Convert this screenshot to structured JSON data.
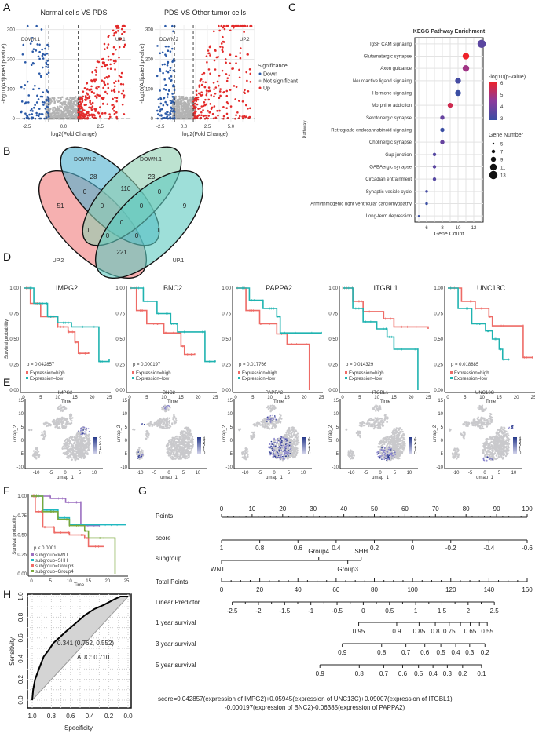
{
  "panels": {
    "A": "A",
    "B": "B",
    "C": "C",
    "D": "D",
    "E": "E",
    "F": "F",
    "G": "G",
    "H": "H"
  },
  "chart_data": [
    {
      "id": "volcano-1",
      "type": "scatter",
      "title": "Normal cells  VS  PDS",
      "xlabel": "log2(Fold Change)",
      "ylabel": "-log10(Adjusted p-value)",
      "xlim": [
        -3.2,
        4.6
      ],
      "ylim": [
        -10,
        315
      ],
      "xticks": [
        "-2.5",
        "0.0",
        "2.5"
      ],
      "yticks": [
        "0",
        "100",
        "200",
        "300"
      ],
      "thresholds": {
        "log2fc": [
          -1,
          1
        ],
        "padj": 0
      },
      "annotations": [
        "DOWN.1",
        "UP.1"
      ],
      "colors": {
        "Down": "#2b5aa8",
        "Not significant": "#b3b3b3",
        "Up": "#e32b2b"
      }
    },
    {
      "id": "volcano-2",
      "type": "scatter",
      "title": "PDS  VS  Other tumor cells",
      "xlabel": "log2(Fold Change)",
      "ylabel": "-log10(Adjusted p-value)",
      "xlim": [
        -3.1,
        7.6
      ],
      "ylim": [
        -10,
        315
      ],
      "xticks": [
        "-2.5",
        "0.0",
        "2.5",
        "5.0"
      ],
      "yticks": [
        "0",
        "100",
        "200",
        "300"
      ],
      "thresholds": {
        "log2fc": [
          -1,
          1
        ],
        "padj": 0
      },
      "annotations": [
        "DOWN.2",
        "UP.2"
      ],
      "legend": {
        "title": "Significance",
        "items": [
          "Down",
          "Not significant",
          "Up"
        ]
      }
    },
    {
      "id": "venn",
      "type": "venn",
      "sets": [
        "UP.2",
        "DOWN.2",
        "DOWN.1",
        "UP.1"
      ],
      "colors": [
        "#f07b7b",
        "#4fb1cf",
        "#8fcfb0",
        "#5ec9c0"
      ],
      "regions": [
        "51",
        "28",
        "110",
        "23",
        "9",
        "0",
        "0",
        "0",
        "0",
        "0",
        "0",
        "0",
        "0",
        "0",
        "221"
      ]
    },
    {
      "id": "kegg",
      "type": "scatter",
      "title": "KEGG Pathway Enrichment",
      "xlabel": "Gene Count",
      "ylabel": "Pathway",
      "xlim": [
        4.5,
        13.2
      ],
      "xticks": [
        "6",
        "8",
        "10",
        "12"
      ],
      "pathways": [
        "IgSF CAM signaling",
        "Glutamatergic synapse",
        "Axon guidance",
        "Neuroactive ligand signaling",
        "Hormone signaling",
        "Morphine addiction",
        "Serotonergic synapse",
        "Retrograde endocannabinoid signaling",
        "Cholinergic synapse",
        "Gap junction",
        "GABAergic synapse",
        "Circadian entrainment",
        "Synaptic vesicle cycle",
        "Arrhythmogenic right ventricular cardiomyopathy",
        "Long-term depression"
      ],
      "gene_count": [
        13,
        11,
        11,
        10,
        10,
        9,
        8,
        8,
        8,
        7,
        7,
        7,
        6,
        6,
        5
      ],
      "neg_log10_p": [
        3.6,
        6.0,
        4.8,
        3.2,
        2.9,
        5.5,
        3.8,
        3.0,
        3.8,
        3.5,
        3.6,
        3.5,
        3.2,
        2.9,
        3.0
      ],
      "color_legend": {
        "title": "-log10(p-value)",
        "ticks": [
          "6",
          "5",
          "4",
          "3"
        ],
        "low": "#3a4ea3",
        "mid": "#8c3a9c",
        "high": "#ee2229"
      },
      "size_legend": {
        "title": "Gene Number",
        "ticks": [
          "5",
          "7",
          "9",
          "11",
          "13"
        ]
      }
    },
    {
      "id": "km-genes",
      "type": "line",
      "ylabel": "Survival probability",
      "xlabel": "Time",
      "xlim": [
        0,
        25
      ],
      "ylim": [
        0,
        1
      ],
      "xticks": [
        "0",
        "5",
        "10",
        "15",
        "20",
        "25"
      ],
      "yticks": [
        "0.00",
        "0.25",
        "0.50",
        "0.75",
        "1.00"
      ],
      "legend": [
        "Expression=high",
        "Expression=low"
      ],
      "colors": {
        "high": "#ee6b66",
        "low": "#1fb3b0"
      },
      "panels": [
        {
          "gene": "IMPG2",
          "p": "p = 0.042857",
          "high": [
            [
              0,
              1
            ],
            [
              2,
              0.85
            ],
            [
              5,
              0.72
            ],
            [
              10,
              0.62
            ],
            [
              13,
              0.57
            ],
            [
              15,
              0.47
            ],
            [
              16,
              0.36
            ],
            [
              19,
              0.37
            ]
          ],
          "low": [
            [
              0,
              1
            ],
            [
              3,
              0.85
            ],
            [
              7,
              0.72
            ],
            [
              10,
              0.66
            ],
            [
              14,
              0.62
            ],
            [
              22,
              0.56
            ],
            [
              22,
              0.28
            ],
            [
              25,
              0.3
            ]
          ]
        },
        {
          "gene": "BNC2",
          "p": "p = 0.000197",
          "high": [
            [
              0,
              1
            ],
            [
              2,
              0.78
            ],
            [
              5,
              0.65
            ],
            [
              10,
              0.56
            ],
            [
              15,
              0.55
            ],
            [
              15,
              0.43
            ],
            [
              16,
              0.35
            ],
            [
              19,
              0.36
            ]
          ],
          "low": [
            [
              0,
              1
            ],
            [
              4,
              0.87
            ],
            [
              8,
              0.75
            ],
            [
              12,
              0.65
            ],
            [
              14,
              0.57
            ],
            [
              22,
              0.57
            ],
            [
              22,
              0.28
            ],
            [
              25,
              0.29
            ]
          ]
        },
        {
          "gene": "PAPPA2",
          "p": "p = 0.017766",
          "high": [
            [
              0,
              1
            ],
            [
              3,
              0.78
            ],
            [
              7,
              0.65
            ],
            [
              12,
              0.55
            ],
            [
              15,
              0.45
            ],
            [
              21.5,
              0.4
            ],
            [
              21.5,
              0
            ]
          ],
          "low": [
            [
              0,
              1
            ],
            [
              4,
              0.88
            ],
            [
              8,
              0.8
            ],
            [
              12,
              0.72
            ],
            [
              13,
              0.56
            ],
            [
              25,
              0.57
            ]
          ]
        },
        {
          "gene": "ITGBL1",
          "p": "p = 0.014329",
          "high": [
            [
              0,
              1
            ],
            [
              3,
              0.87
            ],
            [
              6,
              0.77
            ],
            [
              12,
              0.7
            ],
            [
              15,
              0.62
            ],
            [
              25,
              0.6
            ]
          ],
          "low": [
            [
              0,
              1
            ],
            [
              3,
              0.8
            ],
            [
              6,
              0.67
            ],
            [
              10,
              0.6
            ],
            [
              13,
              0.52
            ],
            [
              15,
              0.4
            ],
            [
              22,
              0.4
            ],
            [
              22,
              0
            ]
          ]
        },
        {
          "gene": "UNC13C",
          "p": "p = 0.018885",
          "high": [
            [
              0,
              1
            ],
            [
              4,
              0.87
            ],
            [
              8,
              0.8
            ],
            [
              12,
              0.72
            ],
            [
              13,
              0.63
            ],
            [
              22,
              0.63
            ],
            [
              22,
              0.32
            ],
            [
              25,
              0.32
            ]
          ],
          "low": [
            [
              0,
              1
            ],
            [
              3,
              0.8
            ],
            [
              7,
              0.65
            ],
            [
              11,
              0.58
            ],
            [
              13,
              0.5
            ],
            [
              15,
              0.4
            ],
            [
              16,
              0.3
            ],
            [
              18,
              0.3
            ]
          ]
        }
      ]
    },
    {
      "id": "umap",
      "type": "scatter",
      "xlabel": "umap_1",
      "ylabel": "umap_2",
      "xticks": [
        "-10",
        "-5",
        "0",
        "5",
        "10"
      ],
      "yticks": [
        "-10",
        "-5",
        "0",
        "5",
        "10",
        "15"
      ],
      "panels": [
        {
          "gene": "IMPG2",
          "legend": [
            "3",
            "2",
            "1",
            "0"
          ]
        },
        {
          "gene": "BNC2",
          "legend": [
            "4",
            "3",
            "2",
            "1",
            "0"
          ]
        },
        {
          "gene": "PAPPA2",
          "legend": [
            "4",
            "3",
            "2",
            "1",
            "0"
          ]
        },
        {
          "gene": "ITGBL1",
          "legend": [
            "4",
            "3",
            "2",
            "1",
            "0"
          ]
        },
        {
          "gene": "UNC13C",
          "legend": [
            "4",
            "3",
            "2",
            "1",
            "0"
          ]
        }
      ]
    },
    {
      "id": "km-subgroup",
      "type": "line",
      "ylabel": "Survival probability",
      "xlabel": "Time",
      "p": "p < 0.0001",
      "xlim": [
        0,
        25
      ],
      "ylim": [
        0,
        1
      ],
      "xticks": [
        "0",
        "5",
        "10",
        "15",
        "20",
        "25"
      ],
      "yticks": [
        "0.00",
        "0.25",
        "0.50",
        "0.75",
        "1.00"
      ],
      "series": [
        {
          "name": "subgroup=WNT",
          "color": "#9b6fc0",
          "points": [
            [
              0,
              1
            ],
            [
              2,
              1
            ],
            [
              5,
              0.97
            ],
            [
              9,
              0.92
            ],
            [
              13,
              0.92
            ],
            [
              13,
              0.62
            ],
            [
              18,
              0.62
            ]
          ]
        },
        {
          "name": "subgroup=SHH",
          "color": "#1fb8c0",
          "points": [
            [
              0,
              1
            ],
            [
              3,
              0.82
            ],
            [
              7,
              0.72
            ],
            [
              10,
              0.63
            ],
            [
              25,
              0.63
            ]
          ]
        },
        {
          "name": "subgroup=Group3",
          "color": "#ee6b66",
          "points": [
            [
              0,
              1
            ],
            [
              1,
              0.8
            ],
            [
              3,
              0.6
            ],
            [
              6,
              0.53
            ],
            [
              10,
              0.5
            ],
            [
              14,
              0.46
            ],
            [
              15,
              0.35
            ],
            [
              19,
              0.35
            ]
          ]
        },
        {
          "name": "subgroup=Group4",
          "color": "#7aa83a",
          "points": [
            [
              0,
              1
            ],
            [
              3,
              0.8
            ],
            [
              7,
              0.7
            ],
            [
              10,
              0.62
            ],
            [
              14,
              0.55
            ],
            [
              15,
              0.46
            ],
            [
              22,
              0.46
            ],
            [
              22,
              0
            ]
          ]
        }
      ]
    },
    {
      "id": "nomogram",
      "type": "nomogram",
      "rows": {
        "points": {
          "label": "Points",
          "ticks": [
            "0",
            "10",
            "20",
            "30",
            "40",
            "50",
            "60",
            "70",
            "80",
            "90",
            "100"
          ]
        },
        "score": {
          "label": "score",
          "ticks": [
            [
              "1",
              0
            ],
            [
              "0.8",
              12.5
            ],
            [
              "0.6",
              25
            ],
            [
              "0.4",
              37.5
            ],
            [
              "0.2",
              50
            ],
            [
              "0",
              62.5
            ],
            [
              "-0.2",
              75
            ],
            [
              "-0.4",
              87.5
            ],
            [
              "-0.6",
              100
            ]
          ]
        },
        "subgroup": {
          "label": "subgroup",
          "levels": [
            [
              "WNT",
              0
            ],
            [
              "Group4",
              31.8
            ],
            [
              "Group3",
              41.3
            ],
            [
              "SHH",
              45.7
            ]
          ]
        },
        "total": {
          "label": "Total Points",
          "ticks": [
            "0",
            "20",
            "40",
            "60",
            "80",
            "100",
            "120",
            "140",
            "160"
          ]
        },
        "lp": {
          "label": "Linear Predictor",
          "ticks": [
            "-2.5",
            "-2",
            "-1.5",
            "-1",
            "-0.5",
            "0",
            "0.5",
            "1",
            "1.5",
            "2",
            "2.5"
          ],
          "total_range": [
            5.6,
            142.8
          ]
        },
        "y1": {
          "label": "1 year survival",
          "ticks": [
            [
              "0.95",
              71.8
            ],
            [
              "0.9",
              91.7
            ],
            [
              "0.85",
              103.4
            ],
            [
              "0.8",
              111.9
            ],
            [
              "0.75",
              119.2
            ],
            [
              "",
              125.1
            ],
            [
              "0.65",
              130.2
            ],
            [
              "",
              135.0
            ],
            [
              "0.55",
              139.1
            ]
          ]
        },
        "y3": {
          "label": "3 year survival",
          "ticks": [
            [
              "0.9",
              63.2
            ],
            [
              "0.8",
              83.8
            ],
            [
              "0.7",
              96.5
            ],
            [
              "0.6",
              106.4
            ],
            [
              "0.5",
              114.8
            ],
            [
              "0.4",
              122.6
            ],
            [
              "0.3",
              129.9
            ],
            [
              "0.2",
              137.9
            ]
          ]
        },
        "y5": {
          "label": "5 year survival",
          "ticks": [
            [
              "0.9",
              51.5
            ],
            [
              "0.8",
              72.1
            ],
            [
              "0.7",
              84.9
            ],
            [
              "0.6",
              94.8
            ],
            [
              "0.5",
              103.1
            ],
            [
              "0.4",
              110.7
            ],
            [
              "0.3",
              118.2
            ],
            [
              "0.2",
              126.2
            ],
            [
              "0.1",
              136.1
            ]
          ]
        }
      },
      "formula_line1": "score=0.042857(expression of IMPG2)+0.05945(expression of UNC13C)+0.09007(expression of ITGBL1)",
      "formula_line2": "-0.000197(expression of BNC2)-0.06385(expression of PAPPA2)"
    },
    {
      "id": "roc",
      "type": "line",
      "xlabel": "Specificity",
      "ylabel": "Sensitivity",
      "xticks": [
        "1.0",
        "0.8",
        "0.6",
        "0.4",
        "0.2",
        "0.0"
      ],
      "yticks": [
        "0.0",
        "0.2",
        "0.4",
        "0.6",
        "0.8",
        "1.0"
      ],
      "xlim": [
        1,
        0
      ],
      "ylim": [
        0,
        1
      ],
      "points": [
        [
          1,
          0
        ],
        [
          0.99,
          0.1
        ],
        [
          0.97,
          0.2
        ],
        [
          0.93,
          0.3
        ],
        [
          0.88,
          0.42
        ],
        [
          0.83,
          0.48
        ],
        [
          0.78,
          0.55
        ],
        [
          0.72,
          0.6
        ],
        [
          0.65,
          0.66
        ],
        [
          0.55,
          0.74
        ],
        [
          0.45,
          0.82
        ],
        [
          0.35,
          0.88
        ],
        [
          0.25,
          0.92
        ],
        [
          0.15,
          0.97
        ],
        [
          0.08,
          1.0
        ],
        [
          0,
          1
        ]
      ],
      "best_point": "0.341 (0.762, 0.552)",
      "auc": "AUC: 0.710"
    }
  ]
}
